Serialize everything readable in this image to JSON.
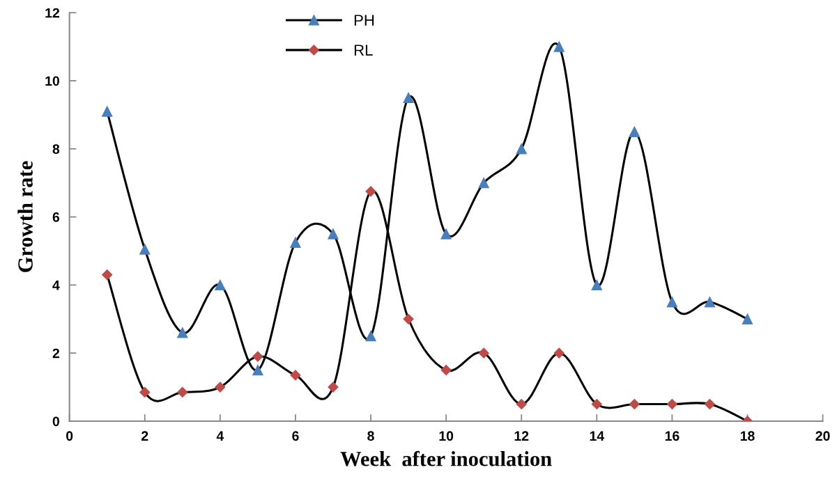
{
  "chart_data": {
    "type": "line",
    "xlabel": "Week  after inoculation",
    "ylabel": "Growth rate",
    "x": [
      1,
      2,
      3,
      4,
      5,
      6,
      7,
      8,
      9,
      10,
      11,
      12,
      13,
      14,
      15,
      16,
      17,
      18
    ],
    "series": [
      {
        "name": "PH",
        "color": "#4a7ebb",
        "marker": "triangle",
        "values": [
          9.1,
          5.05,
          2.6,
          4.0,
          1.5,
          5.25,
          5.5,
          2.5,
          9.5,
          5.5,
          7.0,
          8.0,
          11.0,
          4.0,
          8.5,
          3.5,
          3.5,
          3.0
        ]
      },
      {
        "name": "RL",
        "color": "#be4b48",
        "marker": "diamond",
        "values": [
          4.3,
          0.85,
          0.85,
          1.0,
          1.9,
          1.35,
          1.0,
          6.75,
          3.0,
          1.5,
          2.0,
          0.5,
          2.0,
          0.5,
          0.5,
          0.5,
          0.5,
          0.0
        ]
      }
    ],
    "xlim": [
      0,
      20
    ],
    "xticks": [
      0,
      2,
      4,
      6,
      8,
      10,
      12,
      14,
      16,
      18,
      20
    ],
    "ylim": [
      0,
      12
    ],
    "yticks": [
      0,
      2,
      4,
      6,
      8,
      10,
      12
    ],
    "grid": false,
    "legend": "top",
    "line_style": "solid"
  }
}
